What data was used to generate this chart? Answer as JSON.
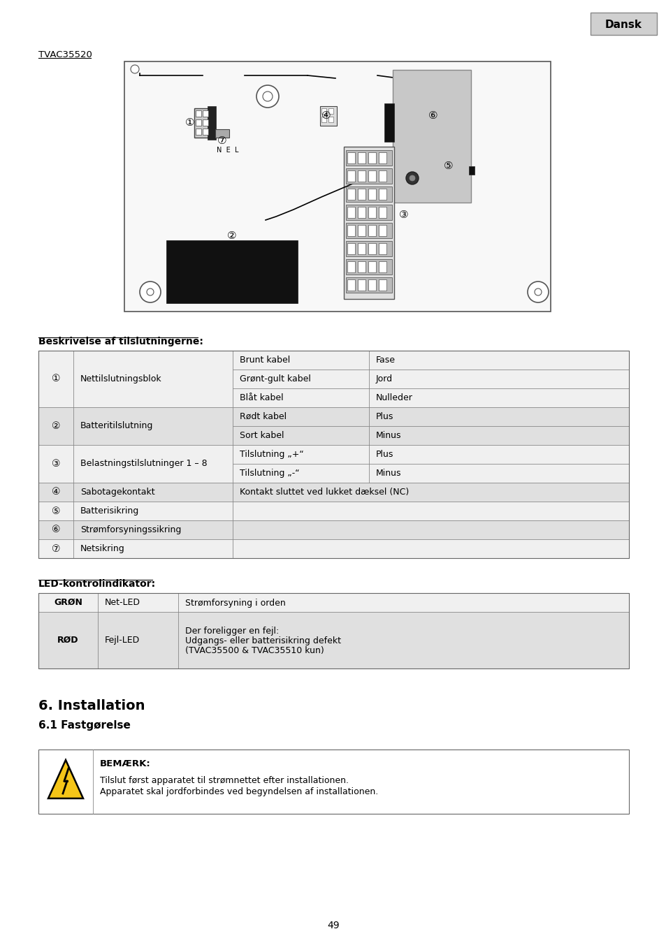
{
  "page_bg": "#ffffff",
  "dansk_box_bg": "#d0d0d0",
  "dansk_text": "Dansk",
  "tvac_label": "TVAC35520",
  "section1_title": "Beskrivelse af tilslutningerne:",
  "section2_title": "LED-kontrolindikator:",
  "section3_title": "6. Installation",
  "section3_sub": "6.1 Fastgørelse",
  "note_title": "BEMÆRK:",
  "note_text1": "Tilslut først apparatet til strømnettet efter installationen.",
  "note_text2": "Apparatet skal jordforbindes ved begyndelsen af installationen.",
  "page_number": "49",
  "groups": [
    {
      "num": "①",
      "label": "Nettilslutningsblok",
      "subs": [
        [
          "Brunt kabel",
          "Fase"
        ],
        [
          "Grønt-gult kabel",
          "Jord"
        ],
        [
          "Blåt kabel",
          "Nulleder"
        ]
      ]
    },
    {
      "num": "②",
      "label": "Batteritilslutning",
      "subs": [
        [
          "Rødt kabel",
          "Plus"
        ],
        [
          "Sort kabel",
          "Minus"
        ]
      ]
    },
    {
      "num": "③",
      "label": "Belastningstilslutninger 1 – 8",
      "subs": [
        [
          "Tilslutning „+“",
          "Plus"
        ],
        [
          "Tilslutning „-“",
          "Minus"
        ]
      ]
    },
    {
      "num": "④",
      "label": "Sabotagekontakt",
      "subs": [
        [
          "Kontakt sluttet ved lukket dæksel (NC)",
          ""
        ]
      ]
    },
    {
      "num": "⑤",
      "label": "Batterisikring",
      "subs": []
    },
    {
      "num": "⑥",
      "label": "Strømforsyningssikring",
      "subs": []
    },
    {
      "num": "⑦",
      "label": "Netsikring",
      "subs": []
    }
  ],
  "table2_data": [
    [
      "GRØN",
      "Net-LED",
      "Strømforsyning i orden"
    ],
    [
      "RØD",
      "Fejl-LED",
      "Der foreligger en fejl:\nUdgangs- eller batterisikring defekt\n(TVAC35500 & TVAC35510 kun)"
    ]
  ],
  "row_colors": [
    "#f0f0f0",
    "#e0e0e0"
  ]
}
